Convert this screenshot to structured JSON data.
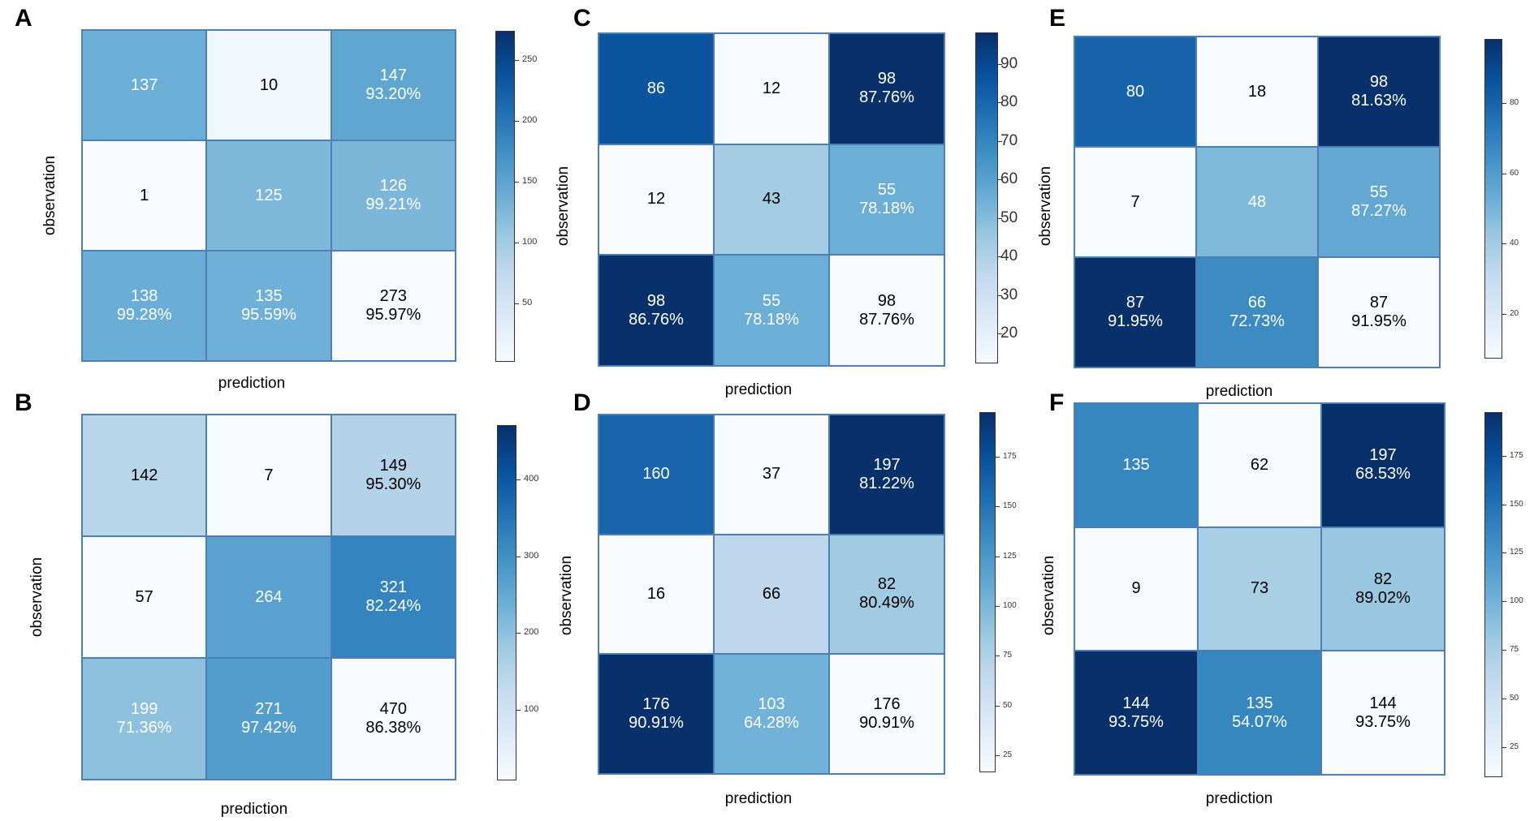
{
  "panels": [
    {
      "id": "A",
      "xlabel": "prediction",
      "ylabel": "observation",
      "cells": [
        [
          "137",
          ""
        ],
        [
          "10",
          ""
        ],
        [
          "147",
          "93.20%"
        ],
        [
          "1",
          ""
        ],
        [
          "125",
          ""
        ],
        [
          "126",
          "99.21%"
        ],
        [
          "138",
          "99.28%"
        ],
        [
          "135",
          "95.59%"
        ],
        [
          "273",
          "95.97%"
        ]
      ],
      "shade": [
        137,
        10,
        147,
        1,
        125,
        126,
        138,
        135,
        0
      ],
      "vmin": 1,
      "vmax": 273,
      "ticks": [
        "50",
        "100",
        "150",
        "200",
        "250"
      ],
      "tickValues": [
        50,
        100,
        150,
        200,
        250
      ]
    },
    {
      "id": "B",
      "xlabel": "prediction",
      "ylabel": "observation",
      "cells": [
        [
          "142",
          ""
        ],
        [
          "7",
          ""
        ],
        [
          "149",
          "95.30%"
        ],
        [
          "57",
          ""
        ],
        [
          "264",
          ""
        ],
        [
          "321",
          "82.24%"
        ],
        [
          "199",
          "71.36%"
        ],
        [
          "271",
          "97.42%"
        ],
        [
          "470",
          "86.38%"
        ]
      ],
      "shade": [
        142,
        7,
        149,
        0,
        264,
        321,
        199,
        271,
        0
      ],
      "vmin": 7,
      "vmax": 470,
      "ticks": [
        "100",
        "200",
        "300",
        "400"
      ],
      "tickValues": [
        100,
        200,
        300,
        400
      ]
    },
    {
      "id": "C",
      "xlabel": "prediction",
      "ylabel": "observation",
      "cells": [
        [
          "86",
          ""
        ],
        [
          "12",
          ""
        ],
        [
          "98",
          "87.76%"
        ],
        [
          "12",
          ""
        ],
        [
          "43",
          ""
        ],
        [
          "55",
          "78.18%"
        ],
        [
          "98",
          "86.76%"
        ],
        [
          "55",
          "78.18%"
        ],
        [
          "98",
          "87.76%"
        ]
      ],
      "shade": [
        86,
        12,
        98,
        12,
        43,
        55,
        98,
        55,
        12
      ],
      "vmin": 12,
      "vmax": 98,
      "ticks": [
        "20",
        "30",
        "40",
        "50",
        "60",
        "70",
        "80",
        "90"
      ],
      "tickValues": [
        20,
        30,
        40,
        50,
        60,
        70,
        80,
        90
      ]
    },
    {
      "id": "D",
      "xlabel": "prediction",
      "ylabel": "observation",
      "cells": [
        [
          "160",
          ""
        ],
        [
          "37",
          ""
        ],
        [
          "197",
          "81.22%"
        ],
        [
          "16",
          ""
        ],
        [
          "66",
          ""
        ],
        [
          "82",
          "80.49%"
        ],
        [
          "176",
          "90.91%"
        ],
        [
          "103",
          "64.28%"
        ],
        [
          "176",
          "90.91%"
        ]
      ],
      "shade": [
        160,
        16,
        197,
        16,
        66,
        82,
        197,
        103,
        16
      ],
      "vmin": 16,
      "vmax": 197,
      "ticks": [
        "25",
        "50",
        "75",
        "100",
        "125",
        "150",
        "175"
      ],
      "tickValues": [
        25,
        50,
        75,
        100,
        125,
        150,
        175
      ]
    },
    {
      "id": "E",
      "xlabel": "prediction",
      "ylabel": "observation",
      "cells": [
        [
          "80",
          ""
        ],
        [
          "18",
          ""
        ],
        [
          "98",
          "81.63%"
        ],
        [
          "7",
          ""
        ],
        [
          "48",
          ""
        ],
        [
          "55",
          "87.27%"
        ],
        [
          "87",
          "91.95%"
        ],
        [
          "66",
          "72.73%"
        ],
        [
          "87",
          "91.95%"
        ]
      ],
      "shade": [
        80,
        7,
        98,
        7,
        48,
        55,
        98,
        66,
        7
      ],
      "vmin": 7,
      "vmax": 98,
      "ticks": [
        "20",
        "40",
        "60",
        "80"
      ],
      "tickValues": [
        20,
        40,
        60,
        80
      ]
    },
    {
      "id": "F",
      "xlabel": "prediction",
      "ylabel": "observation",
      "cells": [
        [
          "135",
          ""
        ],
        [
          "62",
          ""
        ],
        [
          "197",
          "68.53%"
        ],
        [
          "9",
          ""
        ],
        [
          "73",
          ""
        ],
        [
          "82",
          "89.02%"
        ],
        [
          "144",
          "93.75%"
        ],
        [
          "135",
          "54.07%"
        ],
        [
          "144",
          "93.75%"
        ]
      ],
      "shade": [
        135,
        9,
        197,
        9,
        73,
        82,
        197,
        135,
        9
      ],
      "vmin": 9,
      "vmax": 197,
      "ticks": [
        "25",
        "50",
        "75",
        "100",
        "125",
        "150",
        "175"
      ],
      "tickValues": [
        25,
        50,
        75,
        100,
        125,
        150,
        175
      ]
    }
  ],
  "chart_data": [
    {
      "type": "heatmap",
      "title": "A",
      "xlabel": "prediction",
      "ylabel": "observation",
      "values": [
        [
          137,
          10,
          147
        ],
        [
          1,
          125,
          126
        ],
        [
          138,
          135,
          273
        ]
      ],
      "percent_labels": [
        [
          "",
          "",
          "93.20%"
        ],
        [
          "",
          "",
          "99.21%"
        ],
        [
          "99.28%",
          "95.59%",
          "95.97%"
        ]
      ],
      "colorbar_ticks": [
        50,
        100,
        150,
        200,
        250
      ]
    },
    {
      "type": "heatmap",
      "title": "B",
      "xlabel": "prediction",
      "ylabel": "observation",
      "values": [
        [
          142,
          7,
          149
        ],
        [
          57,
          264,
          321
        ],
        [
          199,
          271,
          470
        ]
      ],
      "percent_labels": [
        [
          "",
          "",
          "95.30%"
        ],
        [
          "",
          "",
          "82.24%"
        ],
        [
          "71.36%",
          "97.42%",
          "86.38%"
        ]
      ],
      "colorbar_ticks": [
        100,
        200,
        300,
        400
      ]
    },
    {
      "type": "heatmap",
      "title": "C",
      "xlabel": "prediction",
      "ylabel": "observation",
      "values": [
        [
          86,
          12,
          98
        ],
        [
          12,
          43,
          55
        ],
        [
          98,
          55,
          98
        ]
      ],
      "percent_labels": [
        [
          "",
          "",
          "87.76%"
        ],
        [
          "",
          "",
          "78.18%"
        ],
        [
          "86.76%",
          "78.18%",
          "87.76%"
        ]
      ],
      "colorbar_ticks": [
        20,
        30,
        40,
        50,
        60,
        70,
        80,
        90
      ]
    },
    {
      "type": "heatmap",
      "title": "D",
      "xlabel": "prediction",
      "ylabel": "observation",
      "values": [
        [
          160,
          37,
          197
        ],
        [
          16,
          66,
          82
        ],
        [
          176,
          103,
          176
        ]
      ],
      "percent_labels": [
        [
          "",
          "",
          "81.22%"
        ],
        [
          "",
          "",
          "80.49%"
        ],
        [
          "90.91%",
          "64.28%",
          "90.91%"
        ]
      ],
      "colorbar_ticks": [
        25,
        50,
        75,
        100,
        125,
        150,
        175
      ]
    },
    {
      "type": "heatmap",
      "title": "E",
      "xlabel": "prediction",
      "ylabel": "observation",
      "values": [
        [
          80,
          18,
          98
        ],
        [
          7,
          48,
          55
        ],
        [
          87,
          66,
          87
        ]
      ],
      "percent_labels": [
        [
          "",
          "",
          "81.63%"
        ],
        [
          "",
          "",
          "87.27%"
        ],
        [
          "91.95%",
          "72.73%",
          "91.95%"
        ]
      ],
      "colorbar_ticks": [
        20,
        40,
        60,
        80
      ]
    },
    {
      "type": "heatmap",
      "title": "F",
      "xlabel": "prediction",
      "ylabel": "observation",
      "values": [
        [
          135,
          62,
          197
        ],
        [
          9,
          73,
          82
        ],
        [
          144,
          135,
          144
        ]
      ],
      "percent_labels": [
        [
          "",
          "",
          "68.53%"
        ],
        [
          "",
          "",
          "89.02%"
        ],
        [
          "93.75%",
          "54.07%",
          "93.75%"
        ]
      ],
      "colorbar_ticks": [
        25,
        50,
        75,
        100,
        125,
        150,
        175
      ]
    }
  ]
}
